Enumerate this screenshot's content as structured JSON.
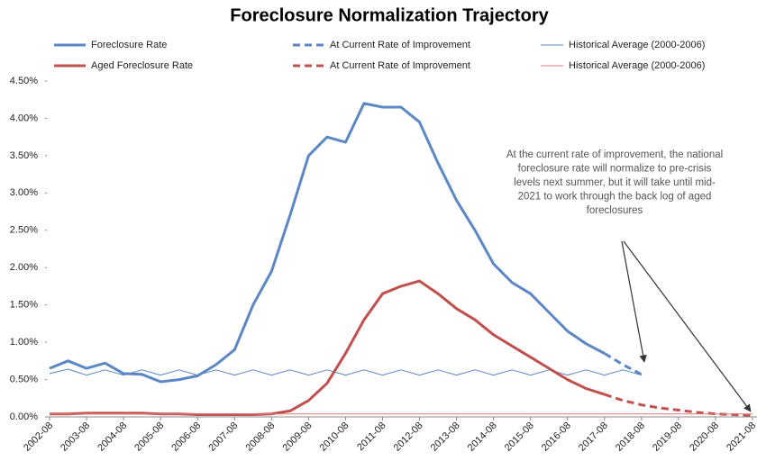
{
  "chart_data": {
    "type": "line",
    "title": "Foreclosure Normalization Trajectory",
    "categories": [
      "2002-08",
      null,
      "2003-08",
      null,
      "2004-08",
      null,
      "2005-08",
      null,
      "2006-08",
      null,
      "2007-08",
      null,
      "2008-08",
      null,
      "2009-08",
      null,
      "2010-08",
      null,
      "2011-08",
      null,
      "2012-08",
      null,
      "2013-08",
      null,
      "2014-08",
      null,
      "2015-08",
      null,
      "2016-08",
      null,
      "2017-08",
      null,
      "2018-08",
      null,
      "2019-08",
      null,
      "2020-08",
      null,
      "2021-08"
    ],
    "series": [
      {
        "name": "Foreclosure Rate",
        "color": "#5b87c5",
        "style": "solid",
        "width": 3,
        "values": [
          0.65,
          0.75,
          0.65,
          0.72,
          0.58,
          0.57,
          0.47,
          0.5,
          0.55,
          0.7,
          0.9,
          1.5,
          1.95,
          2.7,
          3.5,
          3.75,
          3.68,
          4.2,
          4.15,
          4.15,
          3.95,
          3.4,
          2.9,
          2.5,
          2.05,
          1.8,
          1.65,
          1.4,
          1.15,
          0.98,
          0.85,
          null,
          null,
          null,
          null,
          null,
          null,
          null,
          null
        ]
      },
      {
        "name": "At Current Rate of Improvement",
        "color": "#5b87c5",
        "style": "dashed",
        "width": 3,
        "values": [
          null,
          null,
          null,
          null,
          null,
          null,
          null,
          null,
          null,
          null,
          null,
          null,
          null,
          null,
          null,
          null,
          null,
          null,
          null,
          null,
          null,
          null,
          null,
          null,
          null,
          null,
          null,
          null,
          null,
          null,
          0.85,
          0.7,
          0.57,
          null,
          null,
          null,
          null,
          null,
          null
        ]
      },
      {
        "name": "Historical Average (2000-2006)",
        "color": "#5b87c5",
        "style": "solid",
        "width": 1,
        "values": [
          0.58,
          0.64,
          0.56,
          0.63,
          0.56,
          0.63,
          0.56,
          0.63,
          0.56,
          0.63,
          0.56,
          0.63,
          0.56,
          0.63,
          0.56,
          0.63,
          0.56,
          0.63,
          0.56,
          0.63,
          0.56,
          0.63,
          0.56,
          0.63,
          0.56,
          0.63,
          0.56,
          0.63,
          0.56,
          0.63,
          0.56,
          0.63,
          0.56,
          null,
          null,
          null,
          null,
          null,
          null
        ]
      },
      {
        "name": "Aged Foreclosure Rate",
        "color": "#c0504d",
        "style": "solid",
        "width": 3,
        "values": [
          0.04,
          0.04,
          0.05,
          0.05,
          0.05,
          0.05,
          0.04,
          0.04,
          0.03,
          0.03,
          0.03,
          0.03,
          0.04,
          0.08,
          0.22,
          0.45,
          0.85,
          1.3,
          1.65,
          1.75,
          1.82,
          1.65,
          1.45,
          1.3,
          1.1,
          0.95,
          0.8,
          0.65,
          0.5,
          0.38,
          0.3,
          null,
          null,
          null,
          null,
          null,
          null,
          null,
          null
        ]
      },
      {
        "name": "At Current Rate of Improvement",
        "color": "#c0504d",
        "style": "dashed",
        "width": 3,
        "values": [
          null,
          null,
          null,
          null,
          null,
          null,
          null,
          null,
          null,
          null,
          null,
          null,
          null,
          null,
          null,
          null,
          null,
          null,
          null,
          null,
          null,
          null,
          null,
          null,
          null,
          null,
          null,
          null,
          null,
          null,
          0.3,
          0.22,
          0.16,
          0.12,
          0.09,
          0.06,
          0.04,
          0.03,
          0.02
        ]
      },
      {
        "name": "Historical Average (2000-2006)",
        "color": "#e07a78",
        "style": "solid",
        "width": 1,
        "values": [
          0.04,
          0.04,
          0.04,
          0.04,
          0.04,
          0.04,
          0.04,
          0.04,
          0.04,
          0.04,
          0.04,
          0.04,
          0.04,
          0.04,
          0.04,
          0.04,
          0.04,
          0.04,
          0.04,
          0.04,
          0.04,
          0.04,
          0.04,
          0.04,
          0.04,
          0.04,
          0.04,
          0.04,
          0.04,
          0.04,
          0.04,
          0.04,
          0.04,
          0.04,
          0.04,
          0.04,
          0.04,
          0.04,
          0.04
        ]
      }
    ],
    "ylim": [
      0,
      4.5
    ],
    "yticks": [
      {
        "value": 0,
        "label": "0.00%"
      },
      {
        "value": 0.5,
        "label": "0.50%"
      },
      {
        "value": 1,
        "label": "1.00%"
      },
      {
        "value": 1.5,
        "label": "1.50%"
      },
      {
        "value": 2,
        "label": "2.00%"
      },
      {
        "value": 2.5,
        "label": "2.50%"
      },
      {
        "value": 3,
        "label": "3.00%"
      },
      {
        "value": 3.5,
        "label": "3.50%"
      },
      {
        "value": 4,
        "label": "4.00%"
      },
      {
        "value": 4.5,
        "label": "4.50%"
      }
    ],
    "grid": false,
    "annotation": [
      "At the current rate of improvement, the national",
      "foreclosure rate will normalize to pre-crisis",
      "levels next summer, but it will take until mid-",
      "2021 to work through the back log of aged",
      "foreclosures"
    ]
  }
}
